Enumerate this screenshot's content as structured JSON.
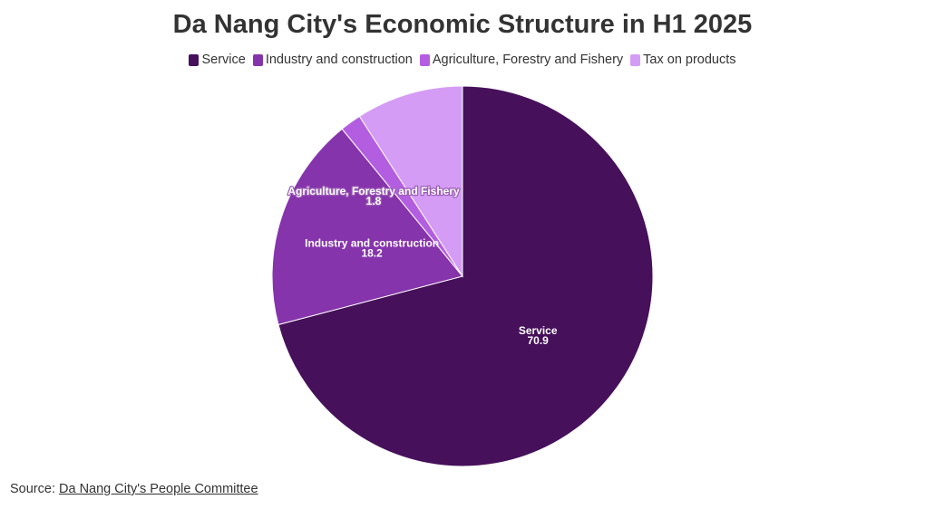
{
  "title": "Da Nang City's Economic Structure in H1 2025",
  "source": {
    "prefix": "Source: ",
    "link_text": "Da Nang City's People Committee"
  },
  "chart_data": {
    "type": "pie",
    "title": "Da Nang City's Economic Structure in H1 2025",
    "legend_position": "top",
    "slices": [
      {
        "name": "Service",
        "value": 70.9,
        "color": "#46105a",
        "label": "Service",
        "value_label": "70.9"
      },
      {
        "name": "Industry and construction",
        "value": 18.2,
        "color": "#8634ab",
        "label": "Industry and construction",
        "value_label": "18.2"
      },
      {
        "name": "Agriculture, Forestry and Fishery",
        "value": 1.8,
        "color": "#b35ee0",
        "label": "Agriculture, Forestry and Fishery",
        "value_label": "1.8"
      },
      {
        "name": "Tax on products",
        "value": 9.1,
        "color": "#d59cf5",
        "label": "",
        "value_label": ""
      }
    ]
  }
}
